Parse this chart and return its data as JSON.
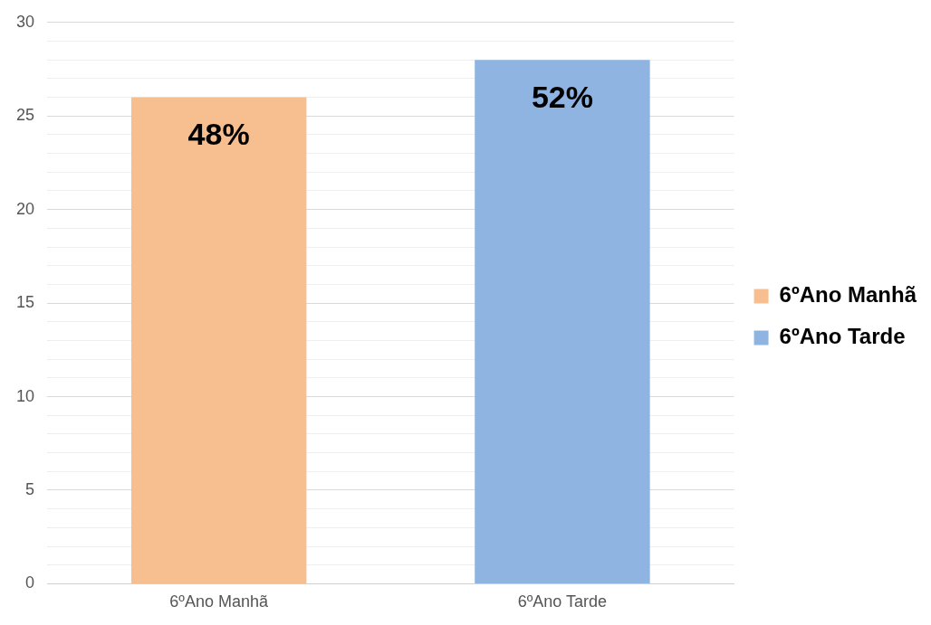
{
  "chart_data": {
    "type": "bar",
    "categories": [
      "6ºAno Manhã",
      "6ºAno Tarde"
    ],
    "series": [
      {
        "name": "6ºAno Manhã",
        "color": "#f7bf8f",
        "values": [
          26,
          null
        ]
      },
      {
        "name": "6ºAno Tarde",
        "color": "#8fb4e2",
        "values": [
          null,
          28
        ]
      }
    ],
    "annotations": [
      {
        "text": "48%",
        "x": "6ºAno Manhã",
        "y": 26
      },
      {
        "text": "52%",
        "x": "6ºAno Tarde",
        "y": 28
      }
    ],
    "ylim": [
      0,
      30
    ],
    "yticks": [
      0,
      {
        "value": 1,
        "label": null
      },
      {
        "value": 2,
        "label": null
      },
      {
        "value": 3,
        "label": null
      },
      {
        "value": 4,
        "label": null
      },
      5,
      {
        "value": 6,
        "label": null
      },
      {
        "value": 7,
        "label": null
      },
      {
        "value": 8,
        "label": null
      },
      {
        "value": 9,
        "label": null
      },
      10,
      {
        "value": 11,
        "label": null
      },
      {
        "value": 12,
        "label": null
      },
      {
        "value": 13,
        "label": null
      },
      {
        "value": 14,
        "label": null
      },
      15,
      {
        "value": 16,
        "label": null
      },
      {
        "value": 17,
        "label": null
      },
      {
        "value": 18,
        "label": null
      },
      {
        "value": 19,
        "label": null
      },
      20,
      {
        "value": 21,
        "label": null
      },
      {
        "value": 22,
        "label": null
      },
      {
        "value": 23,
        "label": null
      },
      {
        "value": 24,
        "label": null
      },
      25,
      {
        "value": 26,
        "label": null
      },
      {
        "value": 27,
        "label": null
      },
      {
        "value": 28,
        "label": null
      },
      {
        "value": 29,
        "label": null
      },
      30
    ],
    "grid": "y",
    "legend": "right"
  }
}
